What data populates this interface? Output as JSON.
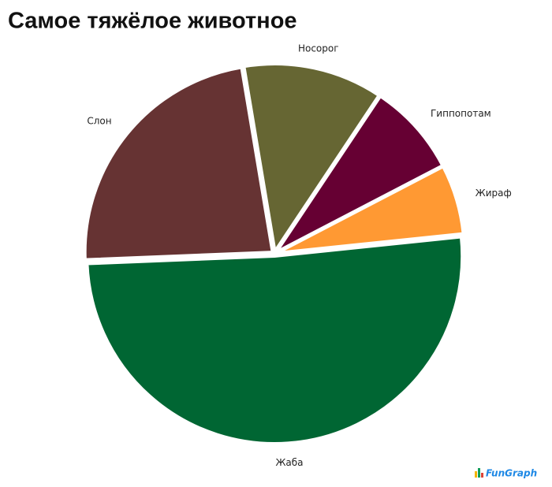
{
  "chart_data": {
    "type": "pie",
    "title": "Самое тяжёлое животное",
    "categories": [
      "Носорог",
      "Гиппопотам",
      "Жираф",
      "Жаба",
      "Слон"
    ],
    "values": [
      12,
      8,
      6,
      51,
      23
    ],
    "colors": [
      "#666633",
      "#660033",
      "#ff9933",
      "#006633",
      "#663333"
    ],
    "watermark": "FunGraph"
  }
}
